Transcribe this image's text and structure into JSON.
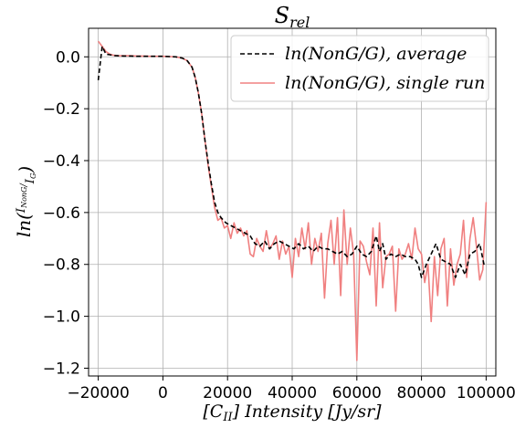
{
  "chart_data": {
    "type": "line",
    "title_base": "S",
    "title_sub": "rel",
    "xlabel_parts": [
      "[C",
      "II",
      "] Intensity [Jy/sr]"
    ],
    "ylabel_parts": [
      "ln(",
      "I",
      "NonG",
      "/",
      "I",
      "G",
      ")"
    ],
    "xlim": [
      -23000,
      103000
    ],
    "ylim": [
      -1.23,
      0.11
    ],
    "xticks": [
      -20000,
      0,
      20000,
      40000,
      60000,
      80000,
      100000
    ],
    "xtick_labels": [
      "−20000",
      "0",
      "20000",
      "40000",
      "60000",
      "80000",
      "100000"
    ],
    "yticks": [
      0.0,
      -0.2,
      -0.4,
      -0.6,
      -0.8,
      -1.0,
      -1.2
    ],
    "ytick_labels": [
      "0.0",
      "−0.2",
      "−0.4",
      "−0.6",
      "−0.8",
      "−1.0",
      "−1.2"
    ],
    "grid": true,
    "legend_position": "top-right",
    "series": [
      {
        "name": "ln(NonG/G),  average",
        "color": "#000000",
        "style": "dashed",
        "x": [
          -20000,
          -18800,
          -17600,
          -16400,
          -15200,
          -14000,
          -12000,
          -10000,
          -8000,
          -6000,
          -4000,
          -2000,
          0,
          2000,
          4000,
          6000,
          7500,
          9000,
          10000,
          11000,
          12000,
          13000,
          14000,
          15000,
          16000,
          17000,
          18000,
          19500,
          21000,
          22500,
          24000,
          25500,
          27000,
          28500,
          30000,
          31500,
          33000,
          34500,
          36000,
          37500,
          39000,
          40500,
          42000,
          43500,
          45000,
          46500,
          48000,
          49500,
          51000,
          52500,
          54000,
          55500,
          57000,
          58500,
          60000,
          61500,
          63000,
          64500,
          66000,
          67000,
          68000,
          69000,
          70500,
          72000,
          73500,
          75000,
          76500,
          78000,
          79000,
          80000,
          81500,
          83000,
          84500,
          86000,
          87500,
          89000,
          90500,
          92000,
          93500,
          95000,
          96500,
          98000,
          99500
        ],
        "values": [
          -0.09,
          0.04,
          0.01,
          0.008,
          0.005,
          0.004,
          0.003,
          0.003,
          0.002,
          0.002,
          0.002,
          0.002,
          0.002,
          0.001,
          0.0,
          -0.005,
          -0.015,
          -0.04,
          -0.08,
          -0.14,
          -0.22,
          -0.32,
          -0.41,
          -0.49,
          -0.56,
          -0.6,
          -0.62,
          -0.64,
          -0.65,
          -0.66,
          -0.67,
          -0.68,
          -0.69,
          -0.72,
          -0.73,
          -0.71,
          -0.74,
          -0.72,
          -0.71,
          -0.72,
          -0.73,
          -0.74,
          -0.72,
          -0.74,
          -0.73,
          -0.75,
          -0.73,
          -0.74,
          -0.74,
          -0.75,
          -0.76,
          -0.75,
          -0.77,
          -0.76,
          -0.73,
          -0.76,
          -0.77,
          -0.75,
          -0.69,
          -0.75,
          -0.72,
          -0.78,
          -0.76,
          -0.77,
          -0.76,
          -0.77,
          -0.77,
          -0.78,
          -0.8,
          -0.85,
          -0.8,
          -0.76,
          -0.72,
          -0.78,
          -0.79,
          -0.8,
          -0.85,
          -0.8,
          -0.84,
          -0.76,
          -0.75,
          -0.72,
          -0.81
        ]
      },
      {
        "name": "ln(NonG/G),  single run",
        "color": "#f08080",
        "style": "solid",
        "x": [
          -20000,
          -18800,
          -17600,
          -16400,
          -15200,
          -14000,
          -12000,
          -10000,
          -8000,
          -6000,
          -4000,
          -2000,
          0,
          2000,
          4000,
          6000,
          7500,
          9000,
          10000,
          11000,
          12000,
          13000,
          14000,
          15000,
          16000,
          17000,
          18000,
          19000,
          20000,
          21000,
          22000,
          23000,
          24000,
          25000,
          26000,
          27000,
          28000,
          29000,
          30000,
          31000,
          32000,
          33000,
          34000,
          35000,
          36000,
          37000,
          38000,
          39000,
          40000,
          41000,
          42000,
          43000,
          44000,
          45000,
          46000,
          47000,
          48000,
          49000,
          50000,
          51000,
          52000,
          53000,
          54000,
          55000,
          56000,
          57000,
          58000,
          59000,
          60000,
          61000,
          62000,
          63000,
          64000,
          65000,
          66000,
          67000,
          68000,
          69000,
          70000,
          71000,
          72000,
          73000,
          74000,
          75000,
          76000,
          77000,
          78000,
          79000,
          80000,
          81000,
          82000,
          83000,
          84000,
          85000,
          86000,
          87000,
          88000,
          89000,
          90000,
          91000,
          92000,
          93000,
          94000,
          95000,
          96000,
          97000,
          98000,
          99000,
          100000
        ],
        "values": [
          0.06,
          0.04,
          0.02,
          0.01,
          0.006,
          0.005,
          0.004,
          0.004,
          0.003,
          0.003,
          0.002,
          0.002,
          0.002,
          0.001,
          0.0,
          -0.005,
          -0.015,
          -0.04,
          -0.08,
          -0.14,
          -0.22,
          -0.32,
          -0.42,
          -0.5,
          -0.58,
          -0.63,
          -0.62,
          -0.66,
          -0.65,
          -0.7,
          -0.64,
          -0.68,
          -0.66,
          -0.69,
          -0.67,
          -0.76,
          -0.77,
          -0.7,
          -0.73,
          -0.75,
          -0.67,
          -0.74,
          -0.72,
          -0.69,
          -0.78,
          -0.71,
          -0.76,
          -0.73,
          -0.85,
          -0.7,
          -0.77,
          -0.66,
          -0.74,
          -0.64,
          -0.8,
          -0.7,
          -0.75,
          -0.68,
          -0.93,
          -0.72,
          -0.63,
          -0.8,
          -0.62,
          -0.92,
          -0.59,
          -0.8,
          -0.66,
          -0.76,
          -1.17,
          -0.71,
          -0.73,
          -0.79,
          -0.84,
          -0.66,
          -0.96,
          -0.64,
          -0.89,
          -0.77,
          -0.76,
          -0.73,
          -0.98,
          -0.74,
          -0.78,
          -0.76,
          -0.72,
          -0.78,
          -0.66,
          -0.74,
          -0.76,
          -0.87,
          -0.8,
          -1.02,
          -0.77,
          -0.92,
          -0.74,
          -0.7,
          -0.96,
          -0.74,
          -0.88,
          -0.8,
          -0.76,
          -0.63,
          -0.85,
          -0.7,
          -0.62,
          -0.73,
          -0.86,
          -0.82,
          -0.56
        ]
      }
    ]
  }
}
